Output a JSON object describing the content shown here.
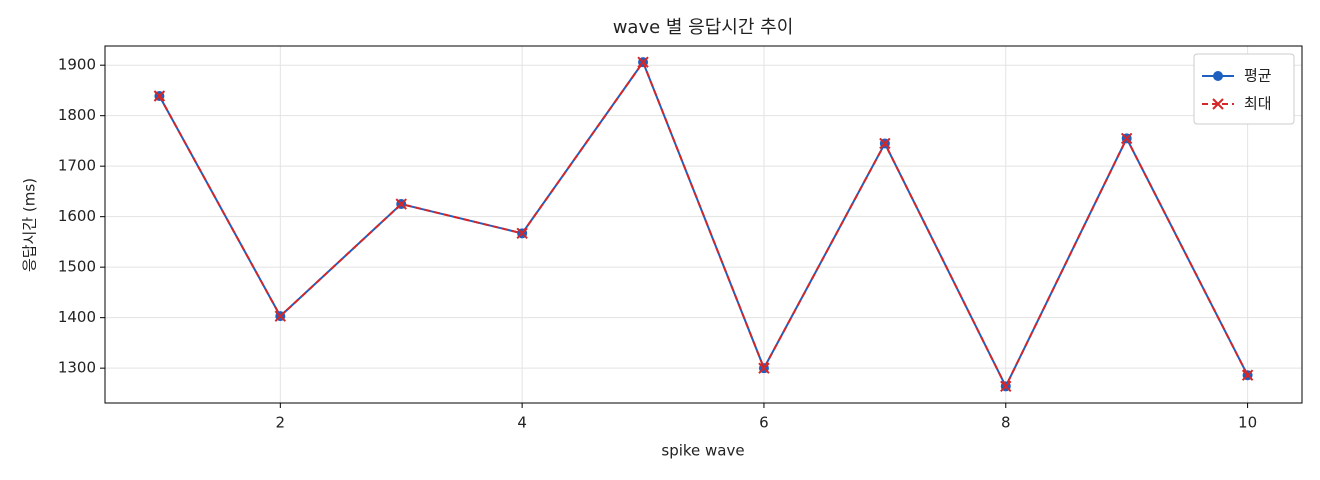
{
  "chart_data": {
    "type": "line",
    "title": "wave 별 응답시간 추이",
    "x_label": "spike wave",
    "y_label": "응답시간 (ms)",
    "x": [
      1,
      2,
      3,
      4,
      5,
      6,
      7,
      8,
      9,
      10
    ],
    "series": [
      {
        "name": "평균",
        "color": "#1f5fbf",
        "marker": "circle",
        "dash": false,
        "values": [
          1839,
          1403,
          1625,
          1567,
          1906,
          1300,
          1745,
          1264,
          1755,
          1286
        ]
      },
      {
        "name": "최대",
        "color": "#d62728",
        "marker": "x",
        "dash": true,
        "values": [
          1839,
          1403,
          1625,
          1567,
          1906,
          1300,
          1745,
          1264,
          1755,
          1286
        ]
      }
    ],
    "xlim": [
      0.55,
      10.45
    ],
    "xticks": [
      2,
      4,
      6,
      8,
      10
    ],
    "ylim": [
      1231,
      1938
    ],
    "yticks": [
      1300,
      1400,
      1500,
      1600,
      1700,
      1800,
      1900
    ],
    "grid": true,
    "legend": "upper right"
  }
}
